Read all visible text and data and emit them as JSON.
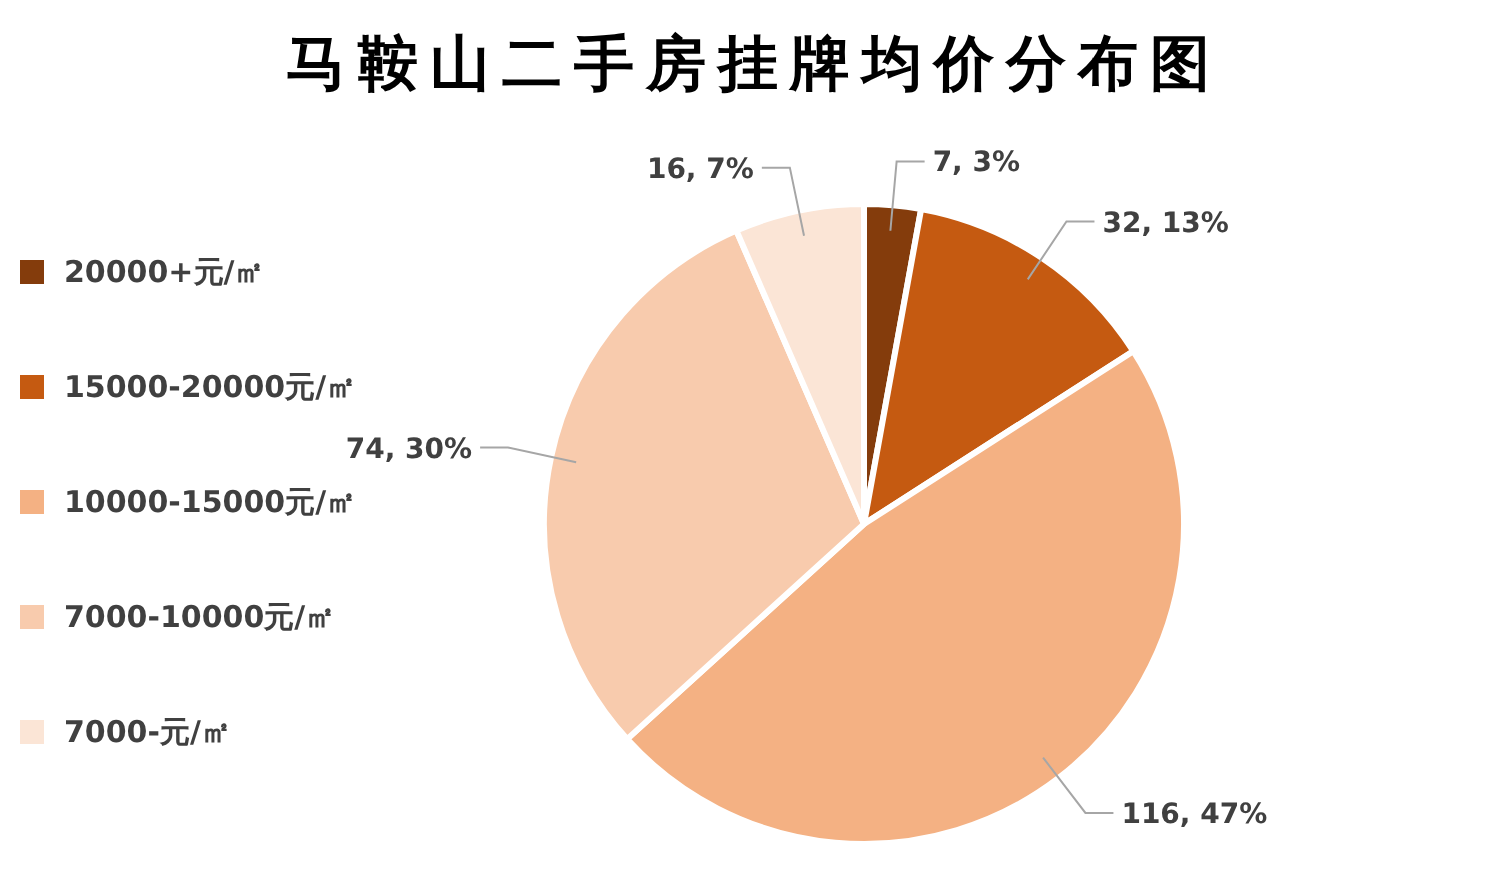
{
  "chart_data": {
    "type": "pie",
    "title": "马鞍山二手房挂牌均价分布图",
    "categories": [
      "20000+元/㎡",
      "15000-20000元/㎡",
      "10000-15000元/㎡",
      "7000-10000元/㎡",
      "7000-元/㎡"
    ],
    "values": [
      7,
      32,
      116,
      74,
      16
    ],
    "colors": [
      "#843c0c",
      "#c55a11",
      "#f4b183",
      "#f8cbad",
      "#fbe5d6"
    ],
    "value_labels": [
      "7, 3%",
      "32, 13%",
      "116, 47%",
      "74, 30%",
      "16, 7%"
    ],
    "legend": "left"
  }
}
